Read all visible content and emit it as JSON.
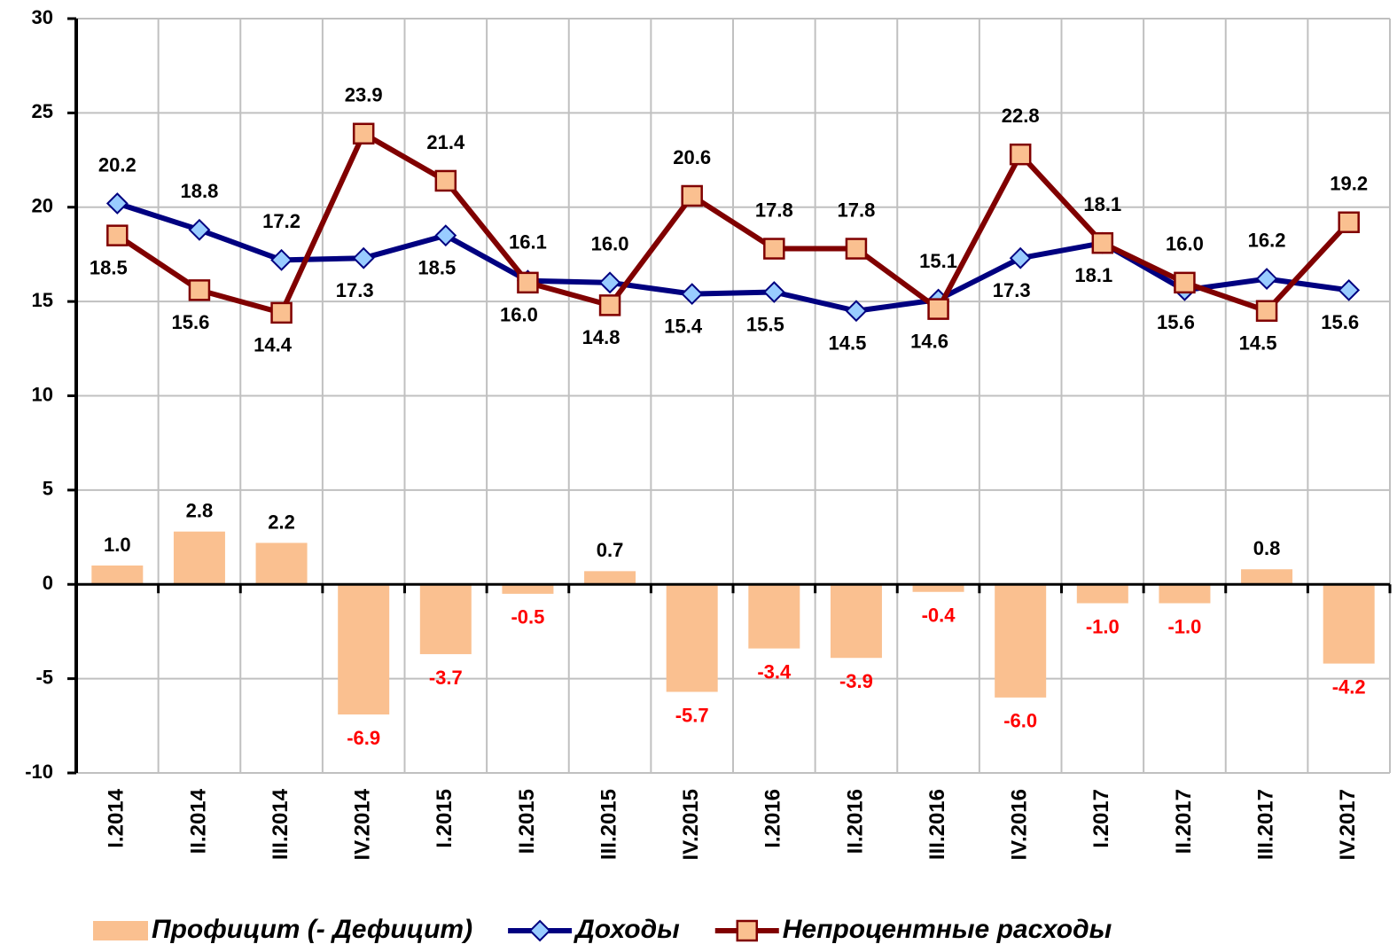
{
  "chart_data": {
    "type": "bar_line",
    "categories": [
      "I.2014",
      "II.2014",
      "III.2014",
      "IV.2014",
      "I.2015",
      "II.2015",
      "III.2015",
      "IV.2015",
      "I.2016",
      "II.2016",
      "III.2016",
      "IV.2016",
      "I.2017",
      "II.2017",
      "III.2017",
      "IV.2017"
    ],
    "series": [
      {
        "name": "Профицит (- Дефицит)",
        "type": "bar",
        "color": "#fac090",
        "values": [
          1.0,
          2.8,
          2.2,
          -6.9,
          -3.7,
          -0.5,
          0.7,
          -5.7,
          -3.4,
          -3.9,
          -0.4,
          -6.0,
          -1.0,
          -1.0,
          0.8,
          -4.2
        ],
        "value_labels": [
          "1.0",
          "2.8",
          "2.2",
          "-6.9",
          "-3.7",
          "-0.5",
          "0.7",
          "-5.7",
          "-3.4",
          "-3.9",
          "-0.4",
          "-6.0",
          "-1.0",
          "-1.0",
          "0.8",
          "-4.2"
        ]
      },
      {
        "name": "Доходы",
        "type": "line",
        "color": "#000080",
        "marker_color": "#99ccff",
        "values": [
          20.2,
          18.8,
          17.2,
          17.3,
          18.5,
          16.1,
          16.0,
          15.4,
          15.5,
          14.5,
          15.1,
          17.3,
          18.1,
          15.6,
          16.2,
          15.6
        ],
        "value_labels": [
          "20.2",
          "18.8",
          "17.2",
          "17.3",
          "18.5",
          "16.1",
          "16.0",
          "15.4",
          "15.5",
          "14.5",
          "15.1",
          "17.3",
          "18.1",
          "15.6",
          "16.2",
          "15.6"
        ]
      },
      {
        "name": "Непроцентные расходы",
        "type": "line",
        "color": "#800000",
        "marker_color": "#fac090",
        "values": [
          18.5,
          15.6,
          14.4,
          23.9,
          21.4,
          16.0,
          14.8,
          20.6,
          17.8,
          17.8,
          14.6,
          22.8,
          18.1,
          16.0,
          14.5,
          19.2
        ],
        "value_labels": [
          "18.5",
          "15.6",
          "14.4",
          "23.9",
          "21.4",
          "16.0",
          "14.8",
          "20.6",
          "17.8",
          "17.8",
          "14.6",
          "22.8",
          "18.1",
          "16.0",
          "14.5",
          "19.2"
        ]
      }
    ],
    "ylim": [
      -10,
      30
    ],
    "yticks": [
      -10,
      -5,
      0,
      5,
      10,
      15,
      20,
      25,
      30
    ],
    "grid": true,
    "legend": "bottom"
  }
}
